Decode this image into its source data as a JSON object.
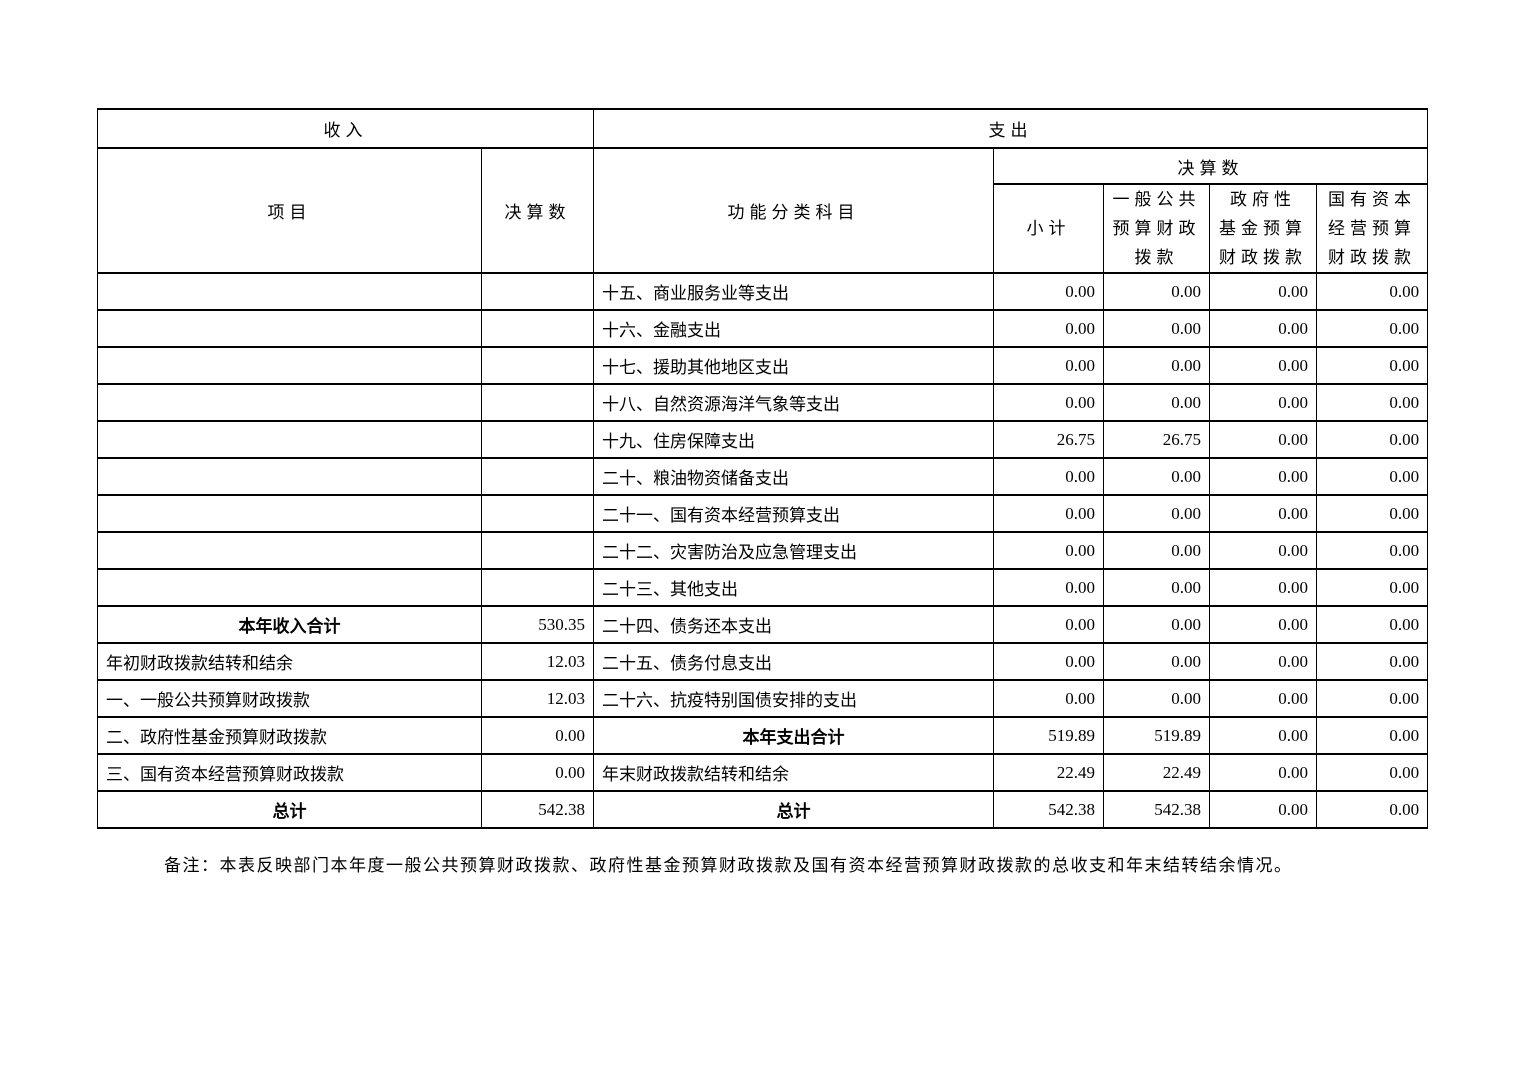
{
  "table": {
    "income_header": "收入",
    "expense_header": "支出",
    "columns": {
      "item": "项目",
      "income_final_accounts": "决算数",
      "functional_subject": "功能分类科目",
      "expense_final_accounts": "决算数",
      "subtotal": "小计",
      "general_public": "一般公共\n预算财政\n拨款",
      "gov_fund": "政府性\n基金预算\n财政拨款",
      "state_capital": "国有资本\n经营预算\n财政拨款"
    },
    "rows": [
      {
        "left_label": "",
        "left_value": "",
        "left_total": false,
        "right_label": "十五、商业服务业等支出",
        "right_total": false,
        "values": [
          "0.00",
          "0.00",
          "0.00",
          "0.00"
        ]
      },
      {
        "left_label": "",
        "left_value": "",
        "left_total": false,
        "right_label": "十六、金融支出",
        "right_total": false,
        "values": [
          "0.00",
          "0.00",
          "0.00",
          "0.00"
        ]
      },
      {
        "left_label": "",
        "left_value": "",
        "left_total": false,
        "right_label": "十七、援助其他地区支出",
        "right_total": false,
        "values": [
          "0.00",
          "0.00",
          "0.00",
          "0.00"
        ]
      },
      {
        "left_label": "",
        "left_value": "",
        "left_total": false,
        "right_label": "十八、自然资源海洋气象等支出",
        "right_total": false,
        "values": [
          "0.00",
          "0.00",
          "0.00",
          "0.00"
        ]
      },
      {
        "left_label": "",
        "left_value": "",
        "left_total": false,
        "right_label": "十九、住房保障支出",
        "right_total": false,
        "values": [
          "26.75",
          "26.75",
          "0.00",
          "0.00"
        ]
      },
      {
        "left_label": "",
        "left_value": "",
        "left_total": false,
        "right_label": "二十、粮油物资储备支出",
        "right_total": false,
        "values": [
          "0.00",
          "0.00",
          "0.00",
          "0.00"
        ]
      },
      {
        "left_label": "",
        "left_value": "",
        "left_total": false,
        "right_label": "二十一、国有资本经营预算支出",
        "right_total": false,
        "values": [
          "0.00",
          "0.00",
          "0.00",
          "0.00"
        ]
      },
      {
        "left_label": "",
        "left_value": "",
        "left_total": false,
        "right_label": "二十二、灾害防治及应急管理支出",
        "right_total": false,
        "values": [
          "0.00",
          "0.00",
          "0.00",
          "0.00"
        ]
      },
      {
        "left_label": "",
        "left_value": "",
        "left_total": false,
        "right_label": "二十三、其他支出",
        "right_total": false,
        "values": [
          "0.00",
          "0.00",
          "0.00",
          "0.00"
        ]
      },
      {
        "left_label": "本年收入合计",
        "left_value": "530.35",
        "left_total": true,
        "right_label": "二十四、债务还本支出",
        "right_total": false,
        "values": [
          "0.00",
          "0.00",
          "0.00",
          "0.00"
        ]
      },
      {
        "left_label": "年初财政拨款结转和结余",
        "left_value": "12.03",
        "left_total": false,
        "right_label": "二十五、债务付息支出",
        "right_total": false,
        "values": [
          "0.00",
          "0.00",
          "0.00",
          "0.00"
        ]
      },
      {
        "left_label": "一、一般公共预算财政拨款",
        "left_value": "12.03",
        "left_total": false,
        "right_label": "二十六、抗疫特别国债安排的支出",
        "right_total": false,
        "values": [
          "0.00",
          "0.00",
          "0.00",
          "0.00"
        ]
      },
      {
        "left_label": "二、政府性基金预算财政拨款",
        "left_value": "0.00",
        "left_total": false,
        "right_label": "本年支出合计",
        "right_total": true,
        "values": [
          "519.89",
          "519.89",
          "0.00",
          "0.00"
        ]
      },
      {
        "left_label": "三、国有资本经营预算财政拨款",
        "left_value": "0.00",
        "left_total": false,
        "right_label": "年末财政拨款结转和结余",
        "right_total": false,
        "values": [
          "22.49",
          "22.49",
          "0.00",
          "0.00"
        ]
      },
      {
        "left_label": "总计",
        "left_value": "542.38",
        "left_total": true,
        "right_label": "总计",
        "right_total": true,
        "values": [
          "542.38",
          "542.38",
          "0.00",
          "0.00"
        ]
      }
    ]
  },
  "note": "备注：本表反映部门本年度一般公共预算财政拨款、政府性基金预算财政拨款及国有资本经营预算财政拨款的总收支和年末结转结余情况。"
}
